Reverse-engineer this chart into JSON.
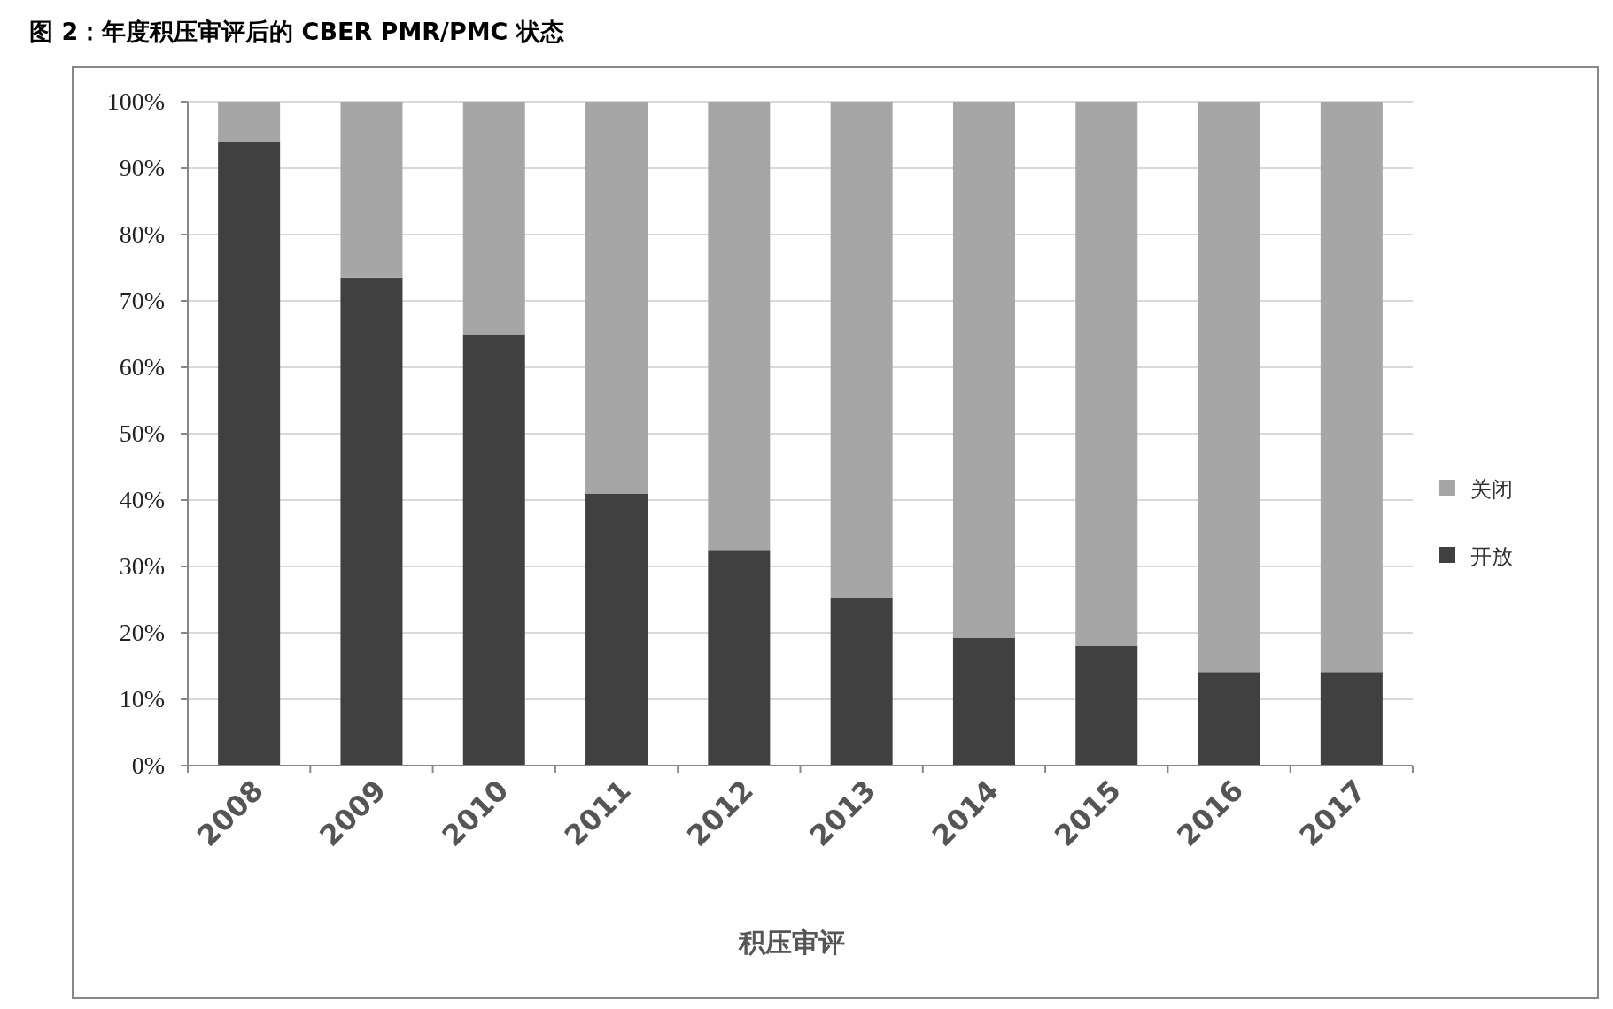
{
  "chart_data": {
    "type": "bar",
    "title": "图 2：年度积压审评后的 CBER PMR/PMC 状态",
    "xlabel": "积压审评",
    "categories": [
      "2008",
      "2009",
      "2010",
      "2011",
      "2012",
      "2013",
      "2014",
      "2015",
      "2016",
      "2017"
    ],
    "stacked": true,
    "series": [
      {
        "name": "开放",
        "color": "#404040",
        "values": [
          94,
          73.5,
          65,
          41,
          32.5,
          25.2,
          19.2,
          18,
          14.1,
          14.1
        ]
      },
      {
        "name": "关闭",
        "color": "#a6a6a6",
        "values": [
          6,
          26.5,
          35,
          59,
          67.5,
          74.8,
          80.8,
          82,
          85.9,
          85.9
        ]
      }
    ],
    "ylim": [
      0,
      100
    ],
    "yticks": [
      {
        "value": 0,
        "label": "0%"
      },
      {
        "value": 10,
        "label": "10%"
      },
      {
        "value": 20,
        "label": "20%"
      },
      {
        "value": 30,
        "label": "30%"
      },
      {
        "value": 40,
        "label": "40%"
      },
      {
        "value": 50,
        "label": "50%"
      },
      {
        "value": 60,
        "label": "60%"
      },
      {
        "value": 70,
        "label": "70%"
      },
      {
        "value": 80,
        "label": "80%"
      },
      {
        "value": 90,
        "label": "90%"
      },
      {
        "value": 100,
        "label": "100%"
      }
    ],
    "grid": "y",
    "legend": "right"
  }
}
